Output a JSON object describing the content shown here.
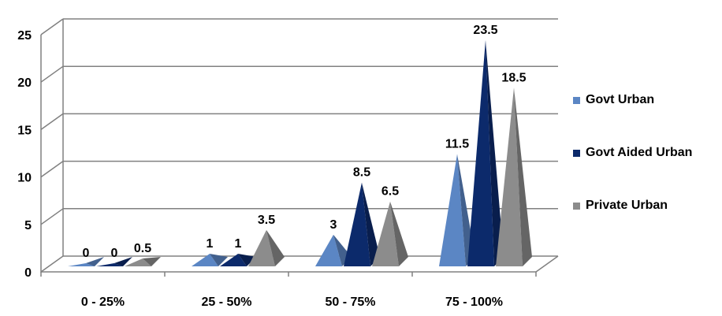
{
  "chart_data": {
    "type": "bar",
    "style": "3d-pyramid",
    "categories": [
      "0 - 25%",
      "25 - 50%",
      "50 - 75%",
      "75 - 100%"
    ],
    "series": [
      {
        "name": "Govt Urban",
        "values": [
          0,
          1,
          3,
          11.5
        ],
        "labels": [
          "0",
          "1",
          "3",
          "11.5"
        ],
        "color": "#5B86C4"
      },
      {
        "name": "Govt Aided Urban",
        "values": [
          0,
          1,
          8.5,
          23.5
        ],
        "labels": [
          "0",
          "1",
          "8.5",
          "23.5"
        ],
        "color": "#0C2A6B"
      },
      {
        "name": "Private Urban",
        "values": [
          0.5,
          3.5,
          6.5,
          18.5
        ],
        "labels": [
          "0.5",
          "3.5",
          "6.5",
          "18.5"
        ],
        "color": "#8C8C8C"
      }
    ],
    "y_ticks": [
      "0",
      "5",
      "10",
      "15",
      "20",
      "25"
    ],
    "ylim": [
      0,
      25
    ],
    "grid": true,
    "legend_position": "right"
  }
}
